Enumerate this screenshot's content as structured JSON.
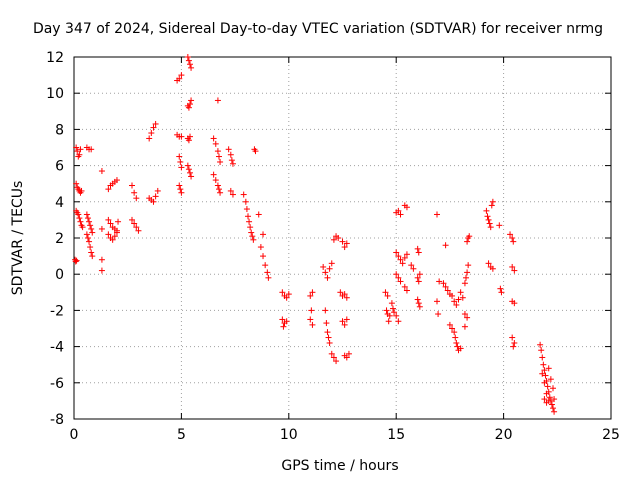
{
  "chart_data": {
    "type": "scatter",
    "title": "Day 347 of 2024, Sidereal Day-to-day VTEC variation (SDTVAR) for receiver nrmg",
    "xlabel": "GPS time / hours",
    "ylabel": "SDTVAR / TECUs",
    "xlim": [
      0,
      25
    ],
    "ylim": [
      -8,
      12
    ],
    "xticks": [
      0,
      5,
      10,
      15,
      20,
      25
    ],
    "yticks": [
      -8,
      -6,
      -4,
      -2,
      0,
      2,
      4,
      6,
      8,
      10,
      12
    ],
    "marker": "+",
    "color": "#ff0000",
    "grid": true,
    "series": [
      {
        "name": "SDTVAR",
        "points": [
          [
            0.05,
            0.8
          ],
          [
            0.08,
            0.7
          ],
          [
            0.12,
            0.75
          ],
          [
            0.1,
            7.0
          ],
          [
            0.15,
            6.8
          ],
          [
            0.2,
            6.5
          ],
          [
            0.25,
            6.6
          ],
          [
            0.3,
            6.9
          ],
          [
            0.1,
            5.0
          ],
          [
            0.15,
            4.8
          ],
          [
            0.2,
            4.7
          ],
          [
            0.25,
            4.6
          ],
          [
            0.3,
            4.5
          ],
          [
            0.35,
            4.6
          ],
          [
            0.1,
            3.5
          ],
          [
            0.15,
            3.4
          ],
          [
            0.2,
            3.3
          ],
          [
            0.25,
            3.1
          ],
          [
            0.3,
            2.9
          ],
          [
            0.35,
            2.7
          ],
          [
            0.4,
            2.6
          ],
          [
            0.6,
            7.0
          ],
          [
            0.7,
            6.9
          ],
          [
            0.8,
            6.9
          ],
          [
            0.6,
            3.3
          ],
          [
            0.65,
            3.1
          ],
          [
            0.7,
            2.9
          ],
          [
            0.75,
            2.7
          ],
          [
            0.8,
            2.5
          ],
          [
            0.85,
            2.3
          ],
          [
            0.6,
            2.2
          ],
          [
            0.65,
            2.0
          ],
          [
            0.7,
            1.8
          ],
          [
            0.75,
            1.5
          ],
          [
            0.8,
            1.2
          ],
          [
            0.85,
            1.0
          ],
          [
            1.3,
            5.7
          ],
          [
            1.3,
            2.5
          ],
          [
            1.3,
            0.8
          ],
          [
            1.3,
            0.2
          ],
          [
            1.6,
            4.7
          ],
          [
            1.7,
            4.9
          ],
          [
            1.8,
            5.0
          ],
          [
            1.9,
            5.1
          ],
          [
            2.0,
            5.2
          ],
          [
            1.6,
            3.0
          ],
          [
            1.7,
            2.8
          ],
          [
            1.8,
            2.6
          ],
          [
            1.9,
            2.5
          ],
          [
            2.0,
            2.4
          ],
          [
            1.6,
            2.2
          ],
          [
            1.7,
            2.0
          ],
          [
            1.8,
            1.9
          ],
          [
            1.9,
            2.1
          ],
          [
            2.0,
            2.3
          ],
          [
            2.05,
            2.9
          ],
          [
            2.7,
            4.9
          ],
          [
            2.8,
            4.5
          ],
          [
            2.9,
            4.2
          ],
          [
            2.7,
            3.0
          ],
          [
            2.8,
            2.8
          ],
          [
            2.9,
            2.6
          ],
          [
            3.0,
            2.4
          ],
          [
            3.5,
            7.5
          ],
          [
            3.6,
            7.8
          ],
          [
            3.7,
            8.1
          ],
          [
            3.8,
            8.3
          ],
          [
            3.5,
            4.2
          ],
          [
            3.6,
            4.1
          ],
          [
            3.7,
            4.0
          ],
          [
            3.8,
            4.3
          ],
          [
            3.9,
            4.6
          ],
          [
            4.8,
            10.7
          ],
          [
            4.9,
            10.8
          ],
          [
            5.0,
            11.0
          ],
          [
            4.8,
            7.7
          ],
          [
            4.9,
            7.6
          ],
          [
            5.0,
            7.6
          ],
          [
            4.9,
            6.5
          ],
          [
            4.95,
            6.2
          ],
          [
            5.0,
            5.9
          ],
          [
            4.9,
            4.9
          ],
          [
            4.95,
            4.7
          ],
          [
            5.0,
            4.5
          ],
          [
            5.3,
            12.0
          ],
          [
            5.35,
            11.8
          ],
          [
            5.4,
            11.6
          ],
          [
            5.45,
            11.4
          ],
          [
            5.3,
            9.3
          ],
          [
            5.35,
            9.2
          ],
          [
            5.4,
            9.4
          ],
          [
            5.45,
            9.6
          ],
          [
            5.3,
            7.5
          ],
          [
            5.35,
            7.4
          ],
          [
            5.4,
            7.6
          ],
          [
            5.3,
            6.0
          ],
          [
            5.35,
            5.8
          ],
          [
            5.4,
            5.6
          ],
          [
            5.45,
            5.4
          ],
          [
            6.7,
            9.6
          ],
          [
            6.5,
            7.5
          ],
          [
            6.6,
            7.2
          ],
          [
            6.7,
            6.8
          ],
          [
            6.75,
            6.5
          ],
          [
            6.8,
            6.2
          ],
          [
            6.5,
            5.5
          ],
          [
            6.6,
            5.2
          ],
          [
            6.7,
            4.9
          ],
          [
            6.75,
            4.7
          ],
          [
            6.8,
            4.5
          ],
          [
            7.2,
            6.9
          ],
          [
            7.3,
            6.6
          ],
          [
            7.35,
            6.3
          ],
          [
            7.4,
            6.1
          ],
          [
            7.3,
            4.6
          ],
          [
            7.4,
            4.4
          ],
          [
            7.9,
            4.4
          ],
          [
            8.0,
            4.0
          ],
          [
            8.05,
            3.6
          ],
          [
            8.1,
            3.2
          ],
          [
            8.15,
            2.9
          ],
          [
            8.2,
            2.6
          ],
          [
            8.25,
            2.3
          ],
          [
            8.3,
            2.1
          ],
          [
            8.35,
            1.9
          ],
          [
            8.4,
            6.9
          ],
          [
            8.45,
            6.8
          ],
          [
            8.6,
            3.3
          ],
          [
            8.7,
            1.5
          ],
          [
            8.8,
            1.0
          ],
          [
            8.9,
            0.5
          ],
          [
            9.0,
            0.1
          ],
          [
            9.05,
            -0.2
          ],
          [
            8.8,
            2.2
          ],
          [
            9.7,
            -1.0
          ],
          [
            9.8,
            -1.2
          ],
          [
            9.9,
            -1.3
          ],
          [
            10.0,
            -1.1
          ],
          [
            9.7,
            -2.5
          ],
          [
            9.8,
            -2.7
          ],
          [
            9.9,
            -2.6
          ],
          [
            9.75,
            -2.9
          ],
          [
            11.0,
            -1.2
          ],
          [
            11.1,
            -1.0
          ],
          [
            11.05,
            -2.0
          ],
          [
            11.0,
            -2.5
          ],
          [
            11.1,
            -2.8
          ],
          [
            11.6,
            0.4
          ],
          [
            11.7,
            0.1
          ],
          [
            11.8,
            -0.2
          ],
          [
            11.9,
            0.3
          ],
          [
            12.0,
            0.6
          ],
          [
            11.7,
            -2.0
          ],
          [
            11.75,
            -2.7
          ],
          [
            11.8,
            -3.2
          ],
          [
            11.85,
            -3.5
          ],
          [
            11.9,
            -3.8
          ],
          [
            12.0,
            -4.4
          ],
          [
            12.1,
            -4.6
          ],
          [
            12.2,
            -4.8
          ],
          [
            12.1,
            1.9
          ],
          [
            12.2,
            2.1
          ],
          [
            12.3,
            2.0
          ],
          [
            12.5,
            1.8
          ],
          [
            12.6,
            1.5
          ],
          [
            12.7,
            1.7
          ],
          [
            12.4,
            -1.0
          ],
          [
            12.5,
            -1.2
          ],
          [
            12.6,
            -1.1
          ],
          [
            12.7,
            -1.3
          ],
          [
            12.5,
            -2.6
          ],
          [
            12.6,
            -2.8
          ],
          [
            12.7,
            -2.5
          ],
          [
            12.6,
            -4.5
          ],
          [
            12.7,
            -4.6
          ],
          [
            12.8,
            -4.4
          ],
          [
            14.5,
            -1.0
          ],
          [
            14.6,
            -1.2
          ],
          [
            14.55,
            -2.0
          ],
          [
            14.6,
            -2.2
          ],
          [
            14.65,
            -2.6
          ],
          [
            14.7,
            -2.3
          ],
          [
            14.8,
            -1.6
          ],
          [
            14.85,
            -1.9
          ],
          [
            14.9,
            -2.1
          ],
          [
            15.0,
            -2.3
          ],
          [
            15.1,
            -2.6
          ],
          [
            15.0,
            3.4
          ],
          [
            15.1,
            3.5
          ],
          [
            15.2,
            3.3
          ],
          [
            15.4,
            3.8
          ],
          [
            15.5,
            3.7
          ],
          [
            15.0,
            1.2
          ],
          [
            15.1,
            1.0
          ],
          [
            15.2,
            0.8
          ],
          [
            15.3,
            0.6
          ],
          [
            15.4,
            0.9
          ],
          [
            15.5,
            1.1
          ],
          [
            15.0,
            0.0
          ],
          [
            15.1,
            -0.2
          ],
          [
            15.2,
            -0.4
          ],
          [
            15.4,
            -0.7
          ],
          [
            15.5,
            -0.9
          ],
          [
            15.7,
            0.5
          ],
          [
            15.8,
            0.3
          ],
          [
            16.0,
            1.4
          ],
          [
            16.05,
            1.2
          ],
          [
            16.1,
            0.0
          ],
          [
            16.0,
            -0.2
          ],
          [
            16.05,
            -0.4
          ],
          [
            16.0,
            -1.4
          ],
          [
            16.05,
            -1.6
          ],
          [
            16.1,
            -1.8
          ],
          [
            16.9,
            3.3
          ],
          [
            16.9,
            -1.5
          ],
          [
            16.95,
            -2.2
          ],
          [
            17.0,
            -0.4
          ],
          [
            17.3,
            1.6
          ],
          [
            17.2,
            -0.5
          ],
          [
            17.3,
            -0.7
          ],
          [
            17.4,
            -0.9
          ],
          [
            17.5,
            -1.1
          ],
          [
            17.5,
            -2.8
          ],
          [
            17.6,
            -3.0
          ],
          [
            17.7,
            -3.2
          ],
          [
            17.75,
            -3.5
          ],
          [
            17.8,
            -3.8
          ],
          [
            17.85,
            -4.0
          ],
          [
            17.9,
            -4.2
          ],
          [
            18.0,
            -4.1
          ],
          [
            17.6,
            -1.2
          ],
          [
            17.7,
            -1.5
          ],
          [
            17.8,
            -1.7
          ],
          [
            17.9,
            -1.4
          ],
          [
            18.0,
            -1.0
          ],
          [
            18.1,
            -1.3
          ],
          [
            18.2,
            -0.5
          ],
          [
            18.25,
            -0.2
          ],
          [
            18.3,
            0.1
          ],
          [
            18.35,
            0.5
          ],
          [
            18.3,
            1.8
          ],
          [
            18.35,
            2.0
          ],
          [
            18.4,
            2.1
          ],
          [
            18.2,
            -2.2
          ],
          [
            18.3,
            -2.4
          ],
          [
            18.2,
            -2.9
          ],
          [
            19.2,
            3.5
          ],
          [
            19.25,
            3.2
          ],
          [
            19.3,
            3.0
          ],
          [
            19.35,
            2.8
          ],
          [
            19.4,
            2.6
          ],
          [
            19.45,
            3.8
          ],
          [
            19.5,
            4.0
          ],
          [
            19.3,
            0.6
          ],
          [
            19.4,
            0.4
          ],
          [
            19.5,
            0.3
          ],
          [
            19.8,
            2.7
          ],
          [
            19.85,
            -0.8
          ],
          [
            19.9,
            -1.0
          ],
          [
            20.3,
            2.2
          ],
          [
            20.4,
            2.0
          ],
          [
            20.45,
            1.8
          ],
          [
            20.4,
            0.4
          ],
          [
            20.5,
            0.2
          ],
          [
            20.4,
            -1.5
          ],
          [
            20.5,
            -1.6
          ],
          [
            20.4,
            -3.5
          ],
          [
            20.5,
            -3.8
          ],
          [
            20.45,
            -4.0
          ],
          [
            21.7,
            -3.9
          ],
          [
            21.75,
            -4.2
          ],
          [
            21.8,
            -4.6
          ],
          [
            21.85,
            -5.0
          ],
          [
            21.9,
            -5.3
          ],
          [
            21.95,
            -5.6
          ],
          [
            22.0,
            -5.9
          ],
          [
            22.05,
            -6.2
          ],
          [
            22.1,
            -6.5
          ],
          [
            22.15,
            -6.8
          ],
          [
            22.2,
            -7.0
          ],
          [
            22.25,
            -7.2
          ],
          [
            22.3,
            -7.4
          ],
          [
            22.35,
            -7.6
          ],
          [
            21.8,
            -5.5
          ],
          [
            21.9,
            -6.0
          ],
          [
            22.0,
            -6.6
          ],
          [
            22.1,
            -7.0
          ],
          [
            21.9,
            -6.9
          ],
          [
            22.0,
            -7.1
          ],
          [
            22.1,
            -5.2
          ],
          [
            22.2,
            -5.8
          ],
          [
            22.3,
            -6.3
          ],
          [
            22.35,
            -6.9
          ]
        ]
      }
    ]
  }
}
